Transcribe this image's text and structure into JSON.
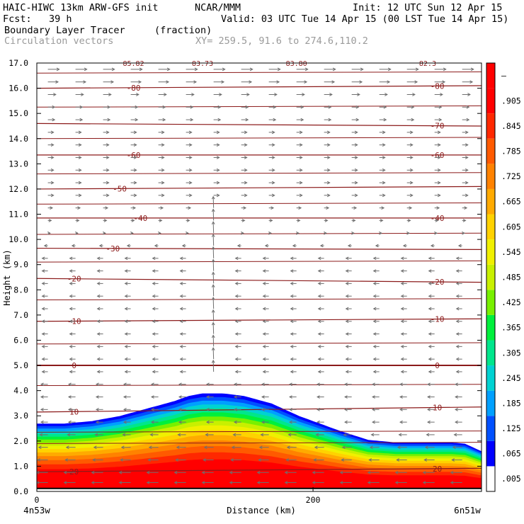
{
  "header": {
    "model": "HAIC-HIWC 13km ARW-GFS init",
    "org": "NCAR/MMM",
    "init": "Init: 12 UTC Sun 12 Apr 15",
    "fcst": "Fcst:   39 h",
    "valid": "Valid: 03 UTC Tue 14 Apr 15 (00 LST Tue 14 Apr 15)",
    "field": "Boundary Layer Tracer",
    "field_units": "(fraction)",
    "vectors": "Circulation vectors",
    "xy": "XY= 259.5, 91.6 to 274.6,110.2"
  },
  "colors": {
    "frame": "#000000",
    "contour": "#8b1a1a",
    "vector": "#6e6e6e",
    "header_gray": "#9a9a9a"
  },
  "chart_data": {
    "type": "heatmap",
    "title": "Boundary Layer Tracer",
    "units": "(fraction)",
    "xlabel": "Distance (km)",
    "ylabel": "Height (km)",
    "xlim": [
      0,
      322
    ],
    "ylim": [
      0,
      17
    ],
    "x_ticks": [
      {
        "value": 0,
        "label": "0"
      },
      {
        "value": 200,
        "label": "200"
      }
    ],
    "y_ticks": [
      "0.0",
      "1.0",
      "2.0",
      "3.0",
      "4.0",
      "5.0",
      "6.0",
      "7.0",
      "8.0",
      "9.0",
      "10.0",
      "11.0",
      "12.0",
      "13.0",
      "14.0",
      "15.0",
      "16.0",
      "17.0"
    ],
    "x_endpoints": {
      "left": "4n53w",
      "right": "6n51w"
    },
    "colorbar": {
      "levels": [
        ".005",
        ".065",
        ".125",
        ".185",
        ".245",
        ".305",
        ".365",
        ".425",
        ".485",
        ".545",
        ".605",
        ".665",
        ".725",
        ".785",
        ".845",
        ".905",
        "–"
      ],
      "colors": [
        "#ffffff",
        "#0000ff",
        "#0050ff",
        "#00a0ff",
        "#00d2d2",
        "#00e68c",
        "#00f03c",
        "#78f000",
        "#c8f000",
        "#f0f000",
        "#ffd200",
        "#ffaa00",
        "#ff8200",
        "#ff5a00",
        "#ff2800",
        "#ff0000",
        "#ff0000"
      ]
    },
    "tracer_top_km": {
      "x": [
        0,
        20,
        40,
        60,
        80,
        100,
        110,
        120,
        135,
        150,
        170,
        190,
        200,
        220,
        240,
        260,
        280,
        300,
        310,
        322
      ],
      "y": [
        2.7,
        2.7,
        2.8,
        3.0,
        3.3,
        3.6,
        3.8,
        3.9,
        3.9,
        3.8,
        3.5,
        3.0,
        2.8,
        2.4,
        2.05,
        1.95,
        1.95,
        1.95,
        1.9,
        1.6
      ]
    },
    "temperature_contours": [
      {
        "label": "20",
        "heights_km": [
          0.78,
          0.92
        ],
        "label_x": [
          27,
          290
        ]
      },
      {
        "label": "10",
        "heights_km": [
          3.15,
          3.35
        ],
        "label_x": [
          27,
          290
        ]
      },
      {
        "label": "0",
        "heights_km": [
          5.0,
          5.0
        ],
        "label_x": [
          27,
          290
        ]
      },
      {
        "label": "-10",
        "heights_km": [
          6.75,
          6.85
        ],
        "label_x": [
          27,
          290
        ]
      },
      {
        "label": "-20",
        "heights_km": [
          8.45,
          8.3
        ],
        "label_x": [
          27,
          290
        ]
      },
      {
        "label": "-30",
        "heights_km": [
          9.65,
          9.6
        ],
        "label_x": [
          55,
          null
        ]
      },
      {
        "label": "-40",
        "heights_km": [
          10.85,
          10.85
        ],
        "label_x": [
          75,
          290
        ]
      },
      {
        "label": "-50",
        "heights_km": [
          12.0,
          12.1
        ],
        "label_x": [
          60,
          null
        ]
      },
      {
        "label": "-60",
        "heights_km": [
          13.35,
          13.35
        ],
        "label_x": [
          70,
          290
        ]
      },
      {
        "label": "-70",
        "heights_km": [
          14.6,
          14.5
        ],
        "label_x": [
          null,
          290
        ]
      },
      {
        "label": "-80",
        "heights_km": [
          16.0,
          16.1
        ],
        "label_x": [
          70,
          290
        ]
      }
    ],
    "extra_contours_km": [
      1.9,
      2.35,
      4.2,
      5.85,
      7.6,
      9.1,
      10.2,
      11.4,
      12.6,
      14.0,
      15.25,
      16.6
    ],
    "top_labels": [
      {
        "text": "85.82",
        "x": 70
      },
      {
        "text": "83.73",
        "x": 120
      },
      {
        "text": "83.80",
        "x": 188
      },
      {
        "text": "82.3",
        "x": 283
      }
    ],
    "vectors": {
      "x": [
        8,
        28,
        48,
        68,
        88,
        108,
        128,
        148,
        168,
        188,
        208,
        228,
        248,
        268,
        288,
        308
      ],
      "levels_km": [
        0.35,
        0.75,
        1.25,
        1.75,
        2.25,
        2.75,
        3.25,
        3.75,
        4.25,
        4.75,
        5.25,
        5.75,
        6.25,
        6.75,
        7.25,
        7.75,
        8.25,
        8.75,
        9.25,
        9.75,
        10.25,
        10.75,
        11.25,
        11.75,
        12.25,
        12.75,
        13.25,
        13.75,
        14.25,
        14.75,
        15.25,
        15.75,
        16.25,
        16.75
      ],
      "u_profile": [
        -1.0,
        -1.0,
        -0.9,
        -0.8,
        -0.7,
        -0.6,
        -0.6,
        -0.6,
        -0.6,
        -0.5,
        -0.5,
        -0.5,
        -0.5,
        -0.5,
        -0.5,
        -0.5,
        -0.5,
        -0.5,
        -0.5,
        -0.3,
        0.2,
        0.3,
        0.4,
        0.5,
        0.5,
        0.5,
        0.5,
        0.5,
        0.5,
        0.6,
        0.6,
        0.7,
        0.9,
        1.0
      ]
    }
  }
}
